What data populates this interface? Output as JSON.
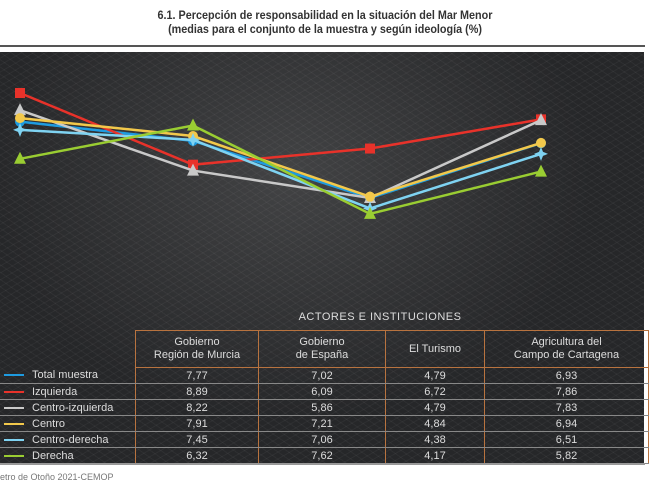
{
  "title_line1": "6.1. Percepción de responsabilidad en la situación del Mar Menor",
  "title_line2": "(medias para el conjunto de la muestra y según ideología (%)",
  "source": "etro de Otoño 2021-CEMOP",
  "chart_data": {
    "type": "line",
    "title": "6.1. Percepción de responsabilidad en la situación del Mar Menor (medias para el conjunto de la muestra y según ideología (%)",
    "xlabel": "ACTORES E INSTITUCIONES",
    "categories": [
      "Gobierno Región de Murcia",
      "Gobierno de España",
      "El Turismo",
      "Agricultura del Campo de Cartagena"
    ],
    "category_lines": [
      [
        "Gobierno",
        "Región de Murcia"
      ],
      [
        "Gobierno",
        "de España"
      ],
      [
        "El Turismo",
        ""
      ],
      [
        "Agricultura del",
        "Campo de Cartagena"
      ]
    ],
    "series": [
      {
        "name": "Total muestra",
        "values": [
          "7,77",
          "7,02",
          "4,79",
          "6,93"
        ],
        "color": "#1e9be0",
        "marker": "circle"
      },
      {
        "name": "Izquierda",
        "values": [
          "8,89",
          "6,09",
          "6,72",
          "7,86"
        ],
        "color": "#e8322a",
        "marker": "square"
      },
      {
        "name": "Centro-izquierda",
        "values": [
          "8,22",
          "5,86",
          "4,79",
          "7,83"
        ],
        "color": "#c9c9c9",
        "marker": "triangle"
      },
      {
        "name": "Centro",
        "values": [
          "7,91",
          "7,21",
          "4,84",
          "6,94"
        ],
        "color": "#f2c84b",
        "marker": "circle"
      },
      {
        "name": "Centro-derecha",
        "values": [
          "7,45",
          "7,06",
          "4,38",
          "6,51"
        ],
        "color": "#7fd3f2",
        "marker": "star"
      },
      {
        "name": "Derecha",
        "values": [
          "6,32",
          "7,62",
          "4,17",
          "5,82"
        ],
        "color": "#9acd32",
        "marker": "triangle"
      }
    ],
    "grid": false,
    "legend": "table-left"
  }
}
